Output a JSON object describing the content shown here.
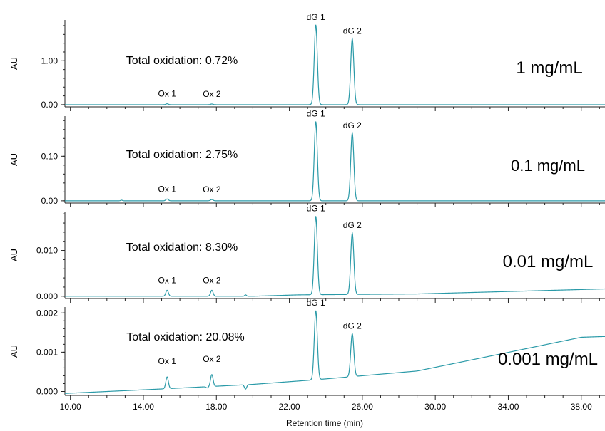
{
  "chart_data": {
    "type": "line",
    "xlabel": "Retention time (min)",
    "xlim": [
      9.7,
      39.3
    ],
    "x_ticks": [
      10,
      14,
      18,
      22,
      26,
      30,
      34,
      38
    ],
    "x_tick_labels": [
      "10.00",
      "14.00",
      "18.00",
      "22.00",
      "26.00",
      "30.00",
      "34.00",
      "38.00"
    ],
    "line_color": "#2a9aa8",
    "panels": [
      {
        "ylabel": "AU",
        "concentration": "1 mg/mL",
        "annotation": "Total oxidation: 0.72%",
        "ylim": [
          -0.05,
          1.93
        ],
        "y_ticks": [
          0.0,
          1.0
        ],
        "y_tick_labels": [
          "0.00",
          "1.00"
        ],
        "baseline": [
          [
            9.7,
            0.0
          ],
          [
            39.3,
            0.0
          ]
        ],
        "peaks": [
          {
            "label": "Ox 1",
            "x": 15.3,
            "y": 0.02,
            "width": 0.07
          },
          {
            "label": "Ox 2",
            "x": 17.75,
            "y": 0.015,
            "width": 0.07
          },
          {
            "label": "dG 1",
            "x": 23.45,
            "y": 1.82,
            "width": 0.085
          },
          {
            "label": "dG 2",
            "x": 25.45,
            "y": 1.5,
            "width": 0.085
          }
        ],
        "minor_peaks": []
      },
      {
        "ylabel": "AU",
        "concentration": "0.1 mg/mL",
        "annotation": "Total oxidation: 2.75%",
        "ylim": [
          -0.005,
          0.19
        ],
        "y_ticks": [
          0.0,
          0.1
        ],
        "y_tick_labels": [
          "0.00",
          "0.10"
        ],
        "baseline": [
          [
            9.7,
            0.0
          ],
          [
            39.3,
            0.0
          ]
        ],
        "peaks": [
          {
            "label": "Ox 1",
            "x": 15.3,
            "y": 0.004,
            "width": 0.07
          },
          {
            "label": "Ox 2",
            "x": 17.75,
            "y": 0.003,
            "width": 0.07
          },
          {
            "label": "dG 1",
            "x": 23.45,
            "y": 0.178,
            "width": 0.085
          },
          {
            "label": "dG 2",
            "x": 25.45,
            "y": 0.152,
            "width": 0.085
          }
        ],
        "minor_peaks": [
          {
            "x": 12.8,
            "y": 0.0015,
            "width": 0.05
          }
        ]
      },
      {
        "ylabel": "AU",
        "concentration": "0.01 mg/mL",
        "annotation": "Total oxidation: 8.30%",
        "ylim": [
          -0.0005,
          0.0185
        ],
        "y_ticks": [
          0.0,
          0.01
        ],
        "y_tick_labels": [
          "0.000",
          "0.010"
        ],
        "baseline": [
          [
            9.7,
            0.0
          ],
          [
            20.0,
            0.0
          ],
          [
            22.5,
            0.0003
          ],
          [
            29.0,
            0.0005
          ],
          [
            39.3,
            0.0016
          ]
        ],
        "peaks": [
          {
            "label": "Ox 1",
            "x": 15.3,
            "y": 0.0013,
            "width": 0.07
          },
          {
            "label": "Ox 2",
            "x": 17.75,
            "y": 0.0013,
            "width": 0.07
          },
          {
            "label": "dG 1",
            "x": 23.45,
            "y": 0.0175,
            "width": 0.085
          },
          {
            "label": "dG 2",
            "x": 25.45,
            "y": 0.0138,
            "width": 0.085
          }
        ],
        "minor_peaks": [
          {
            "x": 19.6,
            "y": 0.0003,
            "width": 0.05
          }
        ]
      },
      {
        "ylabel": "AU",
        "concentration": "0.001 mg/mL",
        "annotation": "Total oxidation: 20.08%",
        "ylim": [
          -0.0001,
          0.00215
        ],
        "y_ticks": [
          0.0,
          0.001,
          0.002
        ],
        "y_tick_labels": [
          "0.000",
          "0.001",
          "0.002"
        ],
        "baseline": [
          [
            9.7,
            -5e-05
          ],
          [
            15.3,
            7e-05
          ],
          [
            20.0,
            0.00018
          ],
          [
            23.5,
            0.0003
          ],
          [
            29.0,
            0.00052
          ],
          [
            33.0,
            0.0009
          ],
          [
            38.0,
            0.00138
          ],
          [
            39.3,
            0.0014
          ]
        ],
        "peaks": [
          {
            "label": "Ox 1",
            "x": 15.3,
            "y": 0.00037,
            "width": 0.07
          },
          {
            "label": "Ox 2",
            "x": 17.75,
            "y": 0.00043,
            "width": 0.07
          },
          {
            "label": "dG 1",
            "x": 23.45,
            "y": 0.00206,
            "width": 0.085
          },
          {
            "label": "dG 2",
            "x": 25.45,
            "y": 0.00147,
            "width": 0.085
          }
        ],
        "minor_peaks": [
          {
            "x": 17.5,
            "y": 9e-05,
            "width": 0.06
          },
          {
            "x": 19.6,
            "y": 6e-05,
            "width": 0.06
          }
        ]
      }
    ]
  }
}
